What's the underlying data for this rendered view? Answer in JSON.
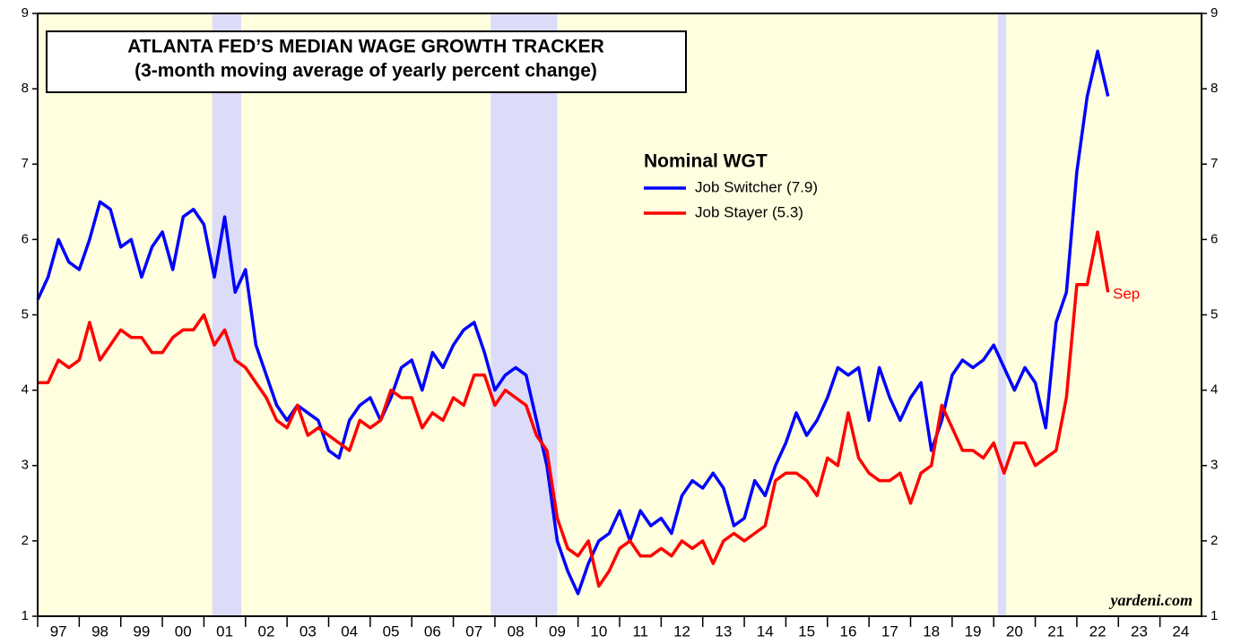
{
  "chart_data": {
    "type": "line",
    "title": "ATLANTA FED’S MEDIAN WAGE GROWTH TRACKER",
    "subtitle": "(3-month moving average of yearly percent change)",
    "legend_title": "Nominal WGT",
    "annotations": [
      "Sep",
      "yardeni.com"
    ],
    "background": "#ffffe0",
    "recession_color": "#dcdcf8",
    "recessions": [
      [
        2001.2,
        2001.9
      ],
      [
        2007.9,
        2009.5
      ],
      [
        2020.1,
        2020.3
      ]
    ],
    "x": [
      1997,
      1997.25,
      1997.5,
      1997.75,
      1998,
      1998.25,
      1998.5,
      1998.75,
      1999,
      1999.25,
      1999.5,
      1999.75,
      2000,
      2000.25,
      2000.5,
      2000.75,
      2001,
      2001.25,
      2001.5,
      2001.75,
      2002,
      2002.25,
      2002.5,
      2002.75,
      2003,
      2003.25,
      2003.5,
      2003.75,
      2004,
      2004.25,
      2004.5,
      2004.75,
      2005,
      2005.25,
      2005.5,
      2005.75,
      2006,
      2006.25,
      2006.5,
      2006.75,
      2007,
      2007.25,
      2007.5,
      2007.75,
      2008,
      2008.25,
      2008.5,
      2008.75,
      2009,
      2009.25,
      2009.5,
      2009.75,
      2010,
      2010.25,
      2010.5,
      2010.75,
      2011,
      2011.25,
      2011.5,
      2011.75,
      2012,
      2012.25,
      2012.5,
      2012.75,
      2013,
      2013.25,
      2013.5,
      2013.75,
      2014,
      2014.25,
      2014.5,
      2014.75,
      2015,
      2015.25,
      2015.5,
      2015.75,
      2016,
      2016.25,
      2016.5,
      2016.75,
      2017,
      2017.25,
      2017.5,
      2017.75,
      2018,
      2018.25,
      2018.5,
      2018.75,
      2019,
      2019.25,
      2019.5,
      2019.75,
      2020,
      2020.25,
      2020.5,
      2020.75,
      2021,
      2021.25,
      2021.5,
      2021.75,
      2022,
      2022.25,
      2022.5,
      2022.75
    ],
    "series": [
      {
        "name": "Job Switcher (7.9)",
        "color": "#0000ff",
        "values": [
          5.2,
          5.5,
          6.0,
          5.7,
          5.6,
          6.0,
          6.5,
          6.4,
          5.9,
          6.0,
          5.5,
          5.9,
          6.1,
          5.6,
          6.3,
          6.4,
          6.2,
          5.5,
          6.3,
          5.3,
          5.6,
          4.6,
          4.2,
          3.8,
          3.6,
          3.8,
          3.7,
          3.6,
          3.2,
          3.1,
          3.6,
          3.8,
          3.9,
          3.6,
          3.9,
          4.3,
          4.4,
          4.0,
          4.5,
          4.3,
          4.6,
          4.8,
          4.9,
          4.5,
          4.0,
          4.2,
          4.3,
          4.2,
          3.6,
          3.0,
          2.0,
          1.6,
          1.3,
          1.7,
          2.0,
          2.1,
          2.4,
          2.0,
          2.4,
          2.2,
          2.3,
          2.1,
          2.6,
          2.8,
          2.7,
          2.9,
          2.7,
          2.2,
          2.3,
          2.8,
          2.6,
          3.0,
          3.3,
          3.7,
          3.4,
          3.6,
          3.9,
          4.3,
          4.2,
          4.3,
          3.6,
          4.3,
          3.9,
          3.6,
          3.9,
          4.1,
          3.2,
          3.6,
          4.2,
          4.4,
          4.3,
          4.4,
          4.6,
          4.3,
          4.0,
          4.3,
          4.1,
          3.5,
          4.9,
          5.3,
          6.9,
          7.9,
          8.5,
          7.9
        ]
      },
      {
        "name": "Job Stayer (5.3)",
        "color": "#ff0000",
        "values": [
          4.1,
          4.1,
          4.4,
          4.3,
          4.4,
          4.9,
          4.4,
          4.6,
          4.8,
          4.7,
          4.7,
          4.5,
          4.5,
          4.7,
          4.8,
          4.8,
          5.0,
          4.6,
          4.8,
          4.4,
          4.3,
          4.1,
          3.9,
          3.6,
          3.5,
          3.8,
          3.4,
          3.5,
          3.4,
          3.3,
          3.2,
          3.6,
          3.5,
          3.6,
          4.0,
          3.9,
          3.9,
          3.5,
          3.7,
          3.6,
          3.9,
          3.8,
          4.2,
          4.2,
          3.8,
          4.0,
          3.9,
          3.8,
          3.4,
          3.2,
          2.3,
          1.9,
          1.8,
          2.0,
          1.4,
          1.6,
          1.9,
          2.0,
          1.8,
          1.8,
          1.9,
          1.8,
          2.0,
          1.9,
          2.0,
          1.7,
          2.0,
          2.1,
          2.0,
          2.1,
          2.2,
          2.8,
          2.9,
          2.9,
          2.8,
          2.6,
          3.1,
          3.0,
          3.7,
          3.1,
          2.9,
          2.8,
          2.8,
          2.9,
          2.5,
          2.9,
          3.0,
          3.8,
          3.5,
          3.2,
          3.2,
          3.1,
          3.3,
          2.9,
          3.3,
          3.3,
          3.0,
          3.1,
          3.2,
          3.9,
          5.4,
          5.4,
          6.1,
          5.3
        ]
      }
    ],
    "xlim": [
      1997,
      2025
    ],
    "xticks": [
      {
        "value": 1997,
        "label": "97"
      },
      {
        "value": 1998,
        "label": "98"
      },
      {
        "value": 1999,
        "label": "99"
      },
      {
        "value": 2000,
        "label": "00"
      },
      {
        "value": 2001,
        "label": "01"
      },
      {
        "value": 2002,
        "label": "02"
      },
      {
        "value": 2003,
        "label": "03"
      },
      {
        "value": 2004,
        "label": "04"
      },
      {
        "value": 2005,
        "label": "05"
      },
      {
        "value": 2006,
        "label": "06"
      },
      {
        "value": 2007,
        "label": "07"
      },
      {
        "value": 2008,
        "label": "08"
      },
      {
        "value": 2009,
        "label": "09"
      },
      {
        "value": 2010,
        "label": "10"
      },
      {
        "value": 2011,
        "label": "11"
      },
      {
        "value": 2012,
        "label": "12"
      },
      {
        "value": 2013,
        "label": "13"
      },
      {
        "value": 2014,
        "label": "14"
      },
      {
        "value": 2015,
        "label": "15"
      },
      {
        "value": 2016,
        "label": "16"
      },
      {
        "value": 2017,
        "label": "17"
      },
      {
        "value": 2018,
        "label": "18"
      },
      {
        "value": 2019,
        "label": "19"
      },
      {
        "value": 2020,
        "label": "20"
      },
      {
        "value": 2021,
        "label": "21"
      },
      {
        "value": 2022,
        "label": "22"
      },
      {
        "value": 2023,
        "label": "23"
      },
      {
        "value": 2024,
        "label": "24"
      }
    ],
    "ylim": [
      1,
      9
    ],
    "yticks": [
      1,
      2,
      3,
      4,
      5,
      6,
      7,
      8,
      9
    ]
  }
}
